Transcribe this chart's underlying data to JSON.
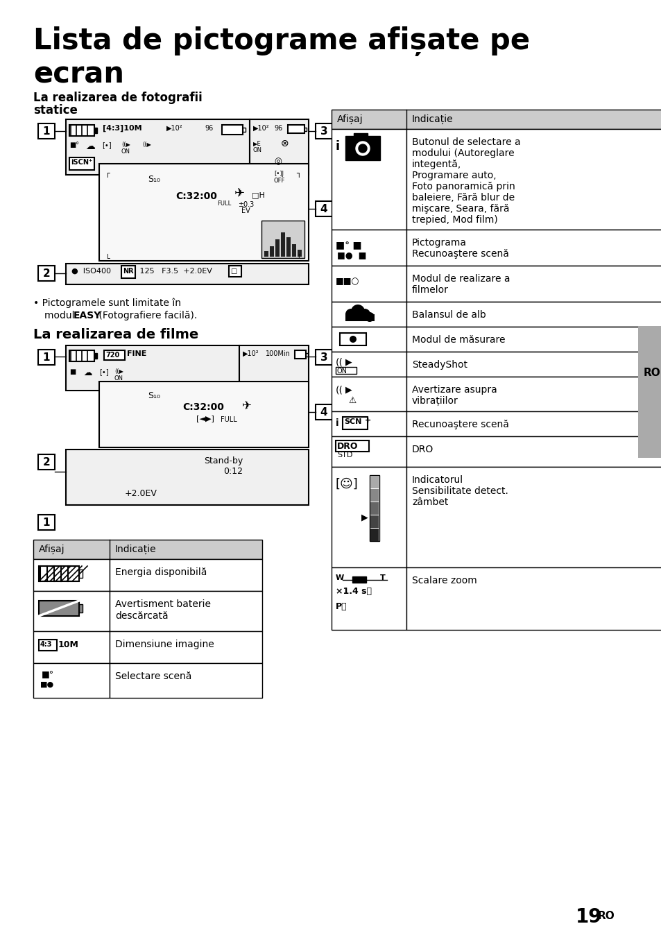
{
  "title_line1": "Lista de pictograme afișate pe",
  "title_line2": "ecran",
  "sec1_title1": "La realizarea de fotografii",
  "sec1_title2": "statice",
  "sec2_title": "La realizarea de filme",
  "bullet1": "• Pictogramele sunt limitate în",
  "bullet2": "modul",
  "bullet_easy": "EASY",
  "bullet3": "(Fotografiere facilă).",
  "tbl_left_h0": "Afișaj",
  "tbl_left_h1": "Indicație",
  "tbl_left_rows": [
    {
      "desc": "Energia disponibilă"
    },
    {
      "desc": "Avertisment baterie\ndescărcată"
    },
    {
      "desc": "Dimensiune imagine"
    },
    {
      "desc": "Selectare scenă"
    }
  ],
  "tbl_right_h0": "Afișaj",
  "tbl_right_h1": "Indicație",
  "tbl_right_rows": [
    {
      "desc": "Butonul de selectare a\nmodului (Autoreglare\nintegentă,\nProgramare auto,\nFoto panoramică prin\nbaleiere, Fără blur de\nmişcare, Seara, fără\ntrepied, Mod film)",
      "rh": 145
    },
    {
      "desc": "Pictograma\nRecunoaştere scenă",
      "rh": 52
    },
    {
      "desc": "Modul de realizare a\nfilmelor",
      "rh": 52
    },
    {
      "desc": "Balansul de alb",
      "rh": 36
    },
    {
      "desc": "Modul de măsurare",
      "rh": 36
    },
    {
      "desc": "SteadyShot",
      "rh": 36
    },
    {
      "desc": "Avertizare asupra\nvibrațiilor",
      "rh": 50
    },
    {
      "desc": "Recunoaştere scenă",
      "rh": 36
    },
    {
      "desc": "DRO",
      "rh": 44
    },
    {
      "desc": "Indicatorul\nSensibilitate detect.\nzâmbet",
      "rh": 145
    },
    {
      "desc": "Scalare zoom",
      "rh": 90
    }
  ],
  "pg_num": "19",
  "pg_suffix": "RO",
  "bg": "#ffffff",
  "hdr_bg": "#cccccc",
  "border": "#000000",
  "gray_side": "#aaaaaa"
}
